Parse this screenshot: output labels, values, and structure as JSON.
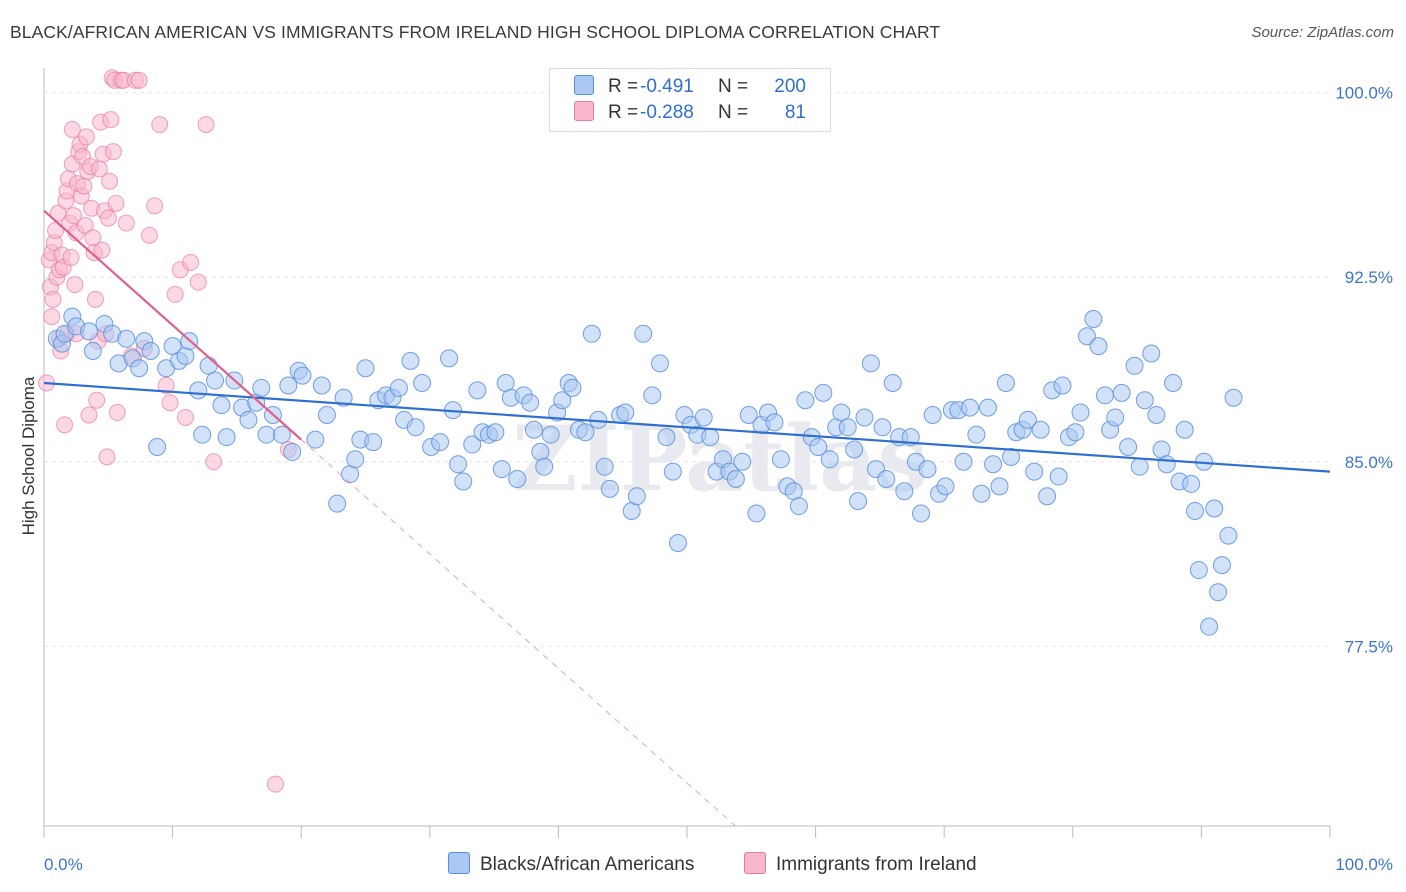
{
  "header": {
    "title": "BLACK/AFRICAN AMERICAN VS IMMIGRANTS FROM IRELAND HIGH SCHOOL DIPLOMA CORRELATION CHART",
    "source": "Source: ZipAtlas.com"
  },
  "legend": {
    "rows": [
      {
        "r_label": "R =",
        "r_value": "-0.491",
        "n_label": "N =",
        "n_value": "200"
      },
      {
        "r_label": "R =",
        "r_value": "-0.288",
        "n_label": "N =",
        "n_value": "81"
      }
    ]
  },
  "bottom_legend": {
    "series_a": "Blacks/African Americans",
    "series_b": "Immigrants from Ireland"
  },
  "watermark": "ZIPatlas",
  "colors": {
    "blue_fill": "#aac8f2",
    "blue_stroke": "#5a8fdc",
    "blue_line": "#2f6fd0",
    "pink_fill": "#f7b8cc",
    "pink_stroke": "#e87aa0",
    "pink_line": "#e0608c",
    "axis_label_blue": "#3d74cc",
    "grid": "#e6e6e6"
  },
  "chart_data": {
    "type": "scatter",
    "title": "BLACK/AFRICAN AMERICAN VS IMMIGRANTS FROM IRELAND HIGH SCHOOL DIPLOMA CORRELATION CHART",
    "xlabel": "",
    "ylabel": "High School Diploma",
    "xlim": [
      0,
      100
    ],
    "ylim": [
      70.2,
      101
    ],
    "x_tick_labels": [
      "0.0%",
      "100.0%"
    ],
    "y_ticks": [
      77.5,
      85.0,
      92.5,
      100.0
    ],
    "y_tick_labels": [
      "77.5%",
      "85.0%",
      "92.5%",
      "100.0%"
    ],
    "grid": true,
    "legend_position": "top-center",
    "series": [
      {
        "name": "Blacks/African Americans",
        "r": -0.491,
        "n": 200,
        "trend": {
          "x": [
            0,
            100
          ],
          "y": [
            88.2,
            84.6
          ]
        },
        "points": [
          [
            1,
            90.0
          ],
          [
            1.4,
            89.8
          ],
          [
            1.6,
            90.2
          ],
          [
            2.2,
            90.9
          ],
          [
            2.5,
            90.5
          ],
          [
            3.5,
            90.3
          ],
          [
            3.8,
            89.5
          ],
          [
            4.7,
            90.6
          ],
          [
            5.3,
            90.2
          ],
          [
            5.8,
            89.0
          ],
          [
            6.4,
            90.0
          ],
          [
            6.9,
            89.2
          ],
          [
            7.4,
            88.8
          ],
          [
            7.8,
            89.9
          ],
          [
            8.3,
            89.5
          ],
          [
            8.8,
            85.6
          ],
          [
            9.5,
            88.8
          ],
          [
            10,
            89.7
          ],
          [
            10.5,
            89.1
          ],
          [
            11.0,
            89.3
          ],
          [
            11.3,
            89.9
          ],
          [
            12.0,
            87.9
          ],
          [
            12.3,
            86.1
          ],
          [
            12.8,
            88.9
          ],
          [
            13.3,
            88.3
          ],
          [
            13.8,
            87.3
          ],
          [
            14.2,
            86.0
          ],
          [
            14.8,
            88.3
          ],
          [
            15.4,
            87.2
          ],
          [
            15.9,
            86.7
          ],
          [
            16.5,
            87.4
          ],
          [
            16.9,
            88.0
          ],
          [
            17.3,
            86.1
          ],
          [
            17.8,
            86.9
          ],
          [
            18.5,
            86.1
          ],
          [
            19.0,
            88.1
          ],
          [
            19.3,
            85.4
          ],
          [
            19.8,
            88.7
          ],
          [
            20.1,
            88.5
          ],
          [
            21.1,
            85.9
          ],
          [
            21.6,
            88.1
          ],
          [
            22.0,
            86.9
          ],
          [
            22.8,
            83.3
          ],
          [
            23.3,
            87.6
          ],
          [
            23.8,
            84.5
          ],
          [
            24.2,
            85.1
          ],
          [
            24.6,
            85.9
          ],
          [
            25.0,
            88.8
          ],
          [
            25.6,
            85.8
          ],
          [
            26.0,
            87.5
          ],
          [
            26.6,
            87.7
          ],
          [
            27.1,
            87.6
          ],
          [
            27.6,
            88.0
          ],
          [
            28.0,
            86.7
          ],
          [
            28.5,
            89.1
          ],
          [
            28.9,
            86.4
          ],
          [
            29.4,
            88.2
          ],
          [
            30.1,
            85.6
          ],
          [
            30.8,
            85.8
          ],
          [
            31.5,
            89.2
          ],
          [
            31.8,
            87.1
          ],
          [
            32.2,
            84.9
          ],
          [
            32.6,
            84.2
          ],
          [
            33.3,
            85.7
          ],
          [
            33.7,
            87.9
          ],
          [
            34.1,
            86.2
          ],
          [
            34.6,
            86.1
          ],
          [
            35.1,
            86.2
          ],
          [
            35.6,
            84.7
          ],
          [
            35.9,
            88.2
          ],
          [
            36.3,
            87.6
          ],
          [
            36.8,
            84.3
          ],
          [
            37.3,
            87.7
          ],
          [
            37.8,
            87.4
          ],
          [
            38.1,
            86.3
          ],
          [
            38.6,
            85.4
          ],
          [
            38.9,
            84.8
          ],
          [
            39.4,
            86.1
          ],
          [
            39.9,
            87.0
          ],
          [
            40.3,
            87.5
          ],
          [
            40.8,
            88.2
          ],
          [
            41.1,
            88.0
          ],
          [
            41.6,
            86.3
          ],
          [
            42.1,
            86.2
          ],
          [
            42.6,
            90.2
          ],
          [
            43.1,
            86.7
          ],
          [
            43.6,
            84.8
          ],
          [
            44.0,
            83.9
          ],
          [
            44.8,
            86.9
          ],
          [
            45.2,
            87.0
          ],
          [
            45.7,
            83.0
          ],
          [
            46.1,
            83.6
          ],
          [
            46.6,
            90.2
          ],
          [
            47.3,
            87.7
          ],
          [
            47.9,
            89.0
          ],
          [
            48.4,
            86.0
          ],
          [
            48.9,
            84.6
          ],
          [
            49.3,
            81.7
          ],
          [
            49.8,
            86.9
          ],
          [
            50.3,
            86.5
          ],
          [
            50.8,
            86.1
          ],
          [
            51.3,
            86.8
          ],
          [
            51.8,
            86.0
          ],
          [
            52.3,
            84.6
          ],
          [
            52.8,
            85.1
          ],
          [
            53.3,
            84.6
          ],
          [
            53.8,
            84.3
          ],
          [
            54.3,
            85.0
          ],
          [
            54.8,
            86.9
          ],
          [
            55.4,
            82.9
          ],
          [
            55.8,
            86.5
          ],
          [
            56.3,
            87.0
          ],
          [
            56.8,
            86.6
          ],
          [
            57.3,
            85.1
          ],
          [
            57.8,
            84.0
          ],
          [
            58.3,
            83.8
          ],
          [
            58.7,
            83.2
          ],
          [
            59.2,
            87.5
          ],
          [
            59.7,
            86.0
          ],
          [
            60.2,
            85.6
          ],
          [
            60.6,
            87.8
          ],
          [
            61.1,
            85.1
          ],
          [
            61.6,
            86.4
          ],
          [
            62.0,
            87.0
          ],
          [
            62.5,
            86.4
          ],
          [
            63.0,
            85.5
          ],
          [
            63.3,
            83.4
          ],
          [
            63.8,
            86.8
          ],
          [
            64.3,
            89.0
          ],
          [
            64.7,
            84.7
          ],
          [
            65.2,
            86.4
          ],
          [
            65.5,
            84.3
          ],
          [
            66.0,
            88.2
          ],
          [
            66.5,
            86.0
          ],
          [
            66.9,
            83.8
          ],
          [
            67.4,
            86.0
          ],
          [
            67.8,
            85.0
          ],
          [
            68.2,
            82.9
          ],
          [
            68.7,
            84.7
          ],
          [
            69.1,
            86.9
          ],
          [
            69.6,
            83.7
          ],
          [
            70.1,
            84.0
          ],
          [
            70.6,
            87.1
          ],
          [
            71.1,
            87.1
          ],
          [
            71.5,
            85.0
          ],
          [
            72.0,
            87.2
          ],
          [
            72.5,
            86.1
          ],
          [
            72.9,
            83.7
          ],
          [
            73.4,
            87.2
          ],
          [
            73.8,
            84.9
          ],
          [
            74.3,
            84.0
          ],
          [
            74.8,
            88.2
          ],
          [
            75.2,
            85.2
          ],
          [
            75.6,
            86.2
          ],
          [
            76.1,
            86.3
          ],
          [
            76.5,
            86.7
          ],
          [
            77.0,
            84.6
          ],
          [
            77.5,
            86.3
          ],
          [
            78.0,
            83.6
          ],
          [
            78.4,
            87.9
          ],
          [
            78.9,
            84.4
          ],
          [
            79.2,
            88.1
          ],
          [
            79.7,
            86.0
          ],
          [
            80.2,
            86.2
          ],
          [
            80.6,
            87.0
          ],
          [
            81.1,
            90.1
          ],
          [
            81.6,
            90.8
          ],
          [
            82.0,
            89.7
          ],
          [
            82.5,
            87.7
          ],
          [
            82.9,
            86.3
          ],
          [
            83.3,
            86.8
          ],
          [
            83.8,
            87.8
          ],
          [
            84.3,
            85.6
          ],
          [
            84.8,
            88.9
          ],
          [
            85.2,
            84.8
          ],
          [
            85.6,
            87.5
          ],
          [
            86.1,
            89.4
          ],
          [
            86.5,
            86.9
          ],
          [
            86.9,
            85.5
          ],
          [
            87.3,
            84.9
          ],
          [
            87.8,
            88.2
          ],
          [
            88.3,
            84.2
          ],
          [
            88.7,
            86.3
          ],
          [
            89.2,
            84.1
          ],
          [
            89.5,
            83.0
          ],
          [
            89.8,
            80.6
          ],
          [
            90.2,
            85.0
          ],
          [
            90.6,
            78.3
          ],
          [
            91.0,
            83.1
          ],
          [
            91.3,
            79.7
          ],
          [
            91.6,
            80.8
          ],
          [
            92.1,
            82.0
          ],
          [
            92.5,
            87.6
          ]
        ]
      },
      {
        "name": "Immigrants from Ireland",
        "r": -0.288,
        "n": 81,
        "trend": {
          "x": [
            0,
            20
          ],
          "y": [
            95.2,
            85.9
          ]
        },
        "points": [
          [
            0.2,
            88.2
          ],
          [
            0.4,
            93.2
          ],
          [
            0.5,
            92.1
          ],
          [
            0.6,
            93.5
          ],
          [
            0.6,
            90.9
          ],
          [
            0.7,
            91.6
          ],
          [
            0.8,
            93.9
          ],
          [
            0.9,
            94.4
          ],
          [
            1.0,
            92.5
          ],
          [
            1.1,
            95.1
          ],
          [
            1.2,
            90.0
          ],
          [
            1.2,
            92.8
          ],
          [
            1.3,
            89.5
          ],
          [
            1.4,
            93.4
          ],
          [
            1.5,
            92.9
          ],
          [
            1.6,
            86.5
          ],
          [
            1.7,
            95.6
          ],
          [
            1.8,
            96.0
          ],
          [
            1.8,
            90.2
          ],
          [
            1.9,
            96.5
          ],
          [
            2.0,
            94.7
          ],
          [
            2.1,
            93.3
          ],
          [
            2.2,
            97.1
          ],
          [
            2.2,
            98.5
          ],
          [
            2.3,
            95.0
          ],
          [
            2.4,
            92.2
          ],
          [
            2.5,
            94.3
          ],
          [
            2.5,
            90.2
          ],
          [
            2.6,
            96.3
          ],
          [
            2.7,
            97.6
          ],
          [
            2.8,
            97.9
          ],
          [
            2.9,
            95.8
          ],
          [
            3.0,
            97.4
          ],
          [
            3.1,
            96.2
          ],
          [
            3.2,
            94.6
          ],
          [
            3.3,
            98.2
          ],
          [
            3.4,
            96.8
          ],
          [
            3.5,
            86.9
          ],
          [
            3.6,
            97.0
          ],
          [
            3.7,
            95.3
          ],
          [
            3.8,
            94.1
          ],
          [
            3.9,
            93.5
          ],
          [
            4.0,
            91.6
          ],
          [
            4.1,
            87.5
          ],
          [
            4.2,
            89.9
          ],
          [
            4.3,
            96.9
          ],
          [
            4.4,
            98.8
          ],
          [
            4.5,
            93.6
          ],
          [
            4.6,
            97.5
          ],
          [
            4.7,
            95.2
          ],
          [
            4.8,
            90.2
          ],
          [
            4.9,
            85.2
          ],
          [
            5.0,
            94.9
          ],
          [
            5.1,
            96.4
          ],
          [
            5.2,
            98.9
          ],
          [
            5.3,
            100.6
          ],
          [
            5.4,
            97.6
          ],
          [
            5.5,
            100.5
          ],
          [
            5.6,
            95.5
          ],
          [
            5.7,
            87.0
          ],
          [
            6.0,
            100.5
          ],
          [
            6.2,
            100.5
          ],
          [
            6.4,
            94.7
          ],
          [
            6.8,
            89.3
          ],
          [
            7.1,
            100.5
          ],
          [
            7.4,
            100.5
          ],
          [
            7.8,
            89.6
          ],
          [
            8.2,
            94.2
          ],
          [
            8.6,
            95.4
          ],
          [
            9.0,
            98.7
          ],
          [
            9.5,
            88.1
          ],
          [
            9.8,
            87.4
          ],
          [
            10.2,
            91.8
          ],
          [
            10.6,
            92.8
          ],
          [
            11.0,
            86.8
          ],
          [
            11.4,
            93.1
          ],
          [
            12.0,
            92.3
          ],
          [
            12.6,
            98.7
          ],
          [
            13.2,
            85.0
          ],
          [
            18.0,
            71.9
          ],
          [
            19.0,
            85.5
          ]
        ]
      }
    ]
  }
}
